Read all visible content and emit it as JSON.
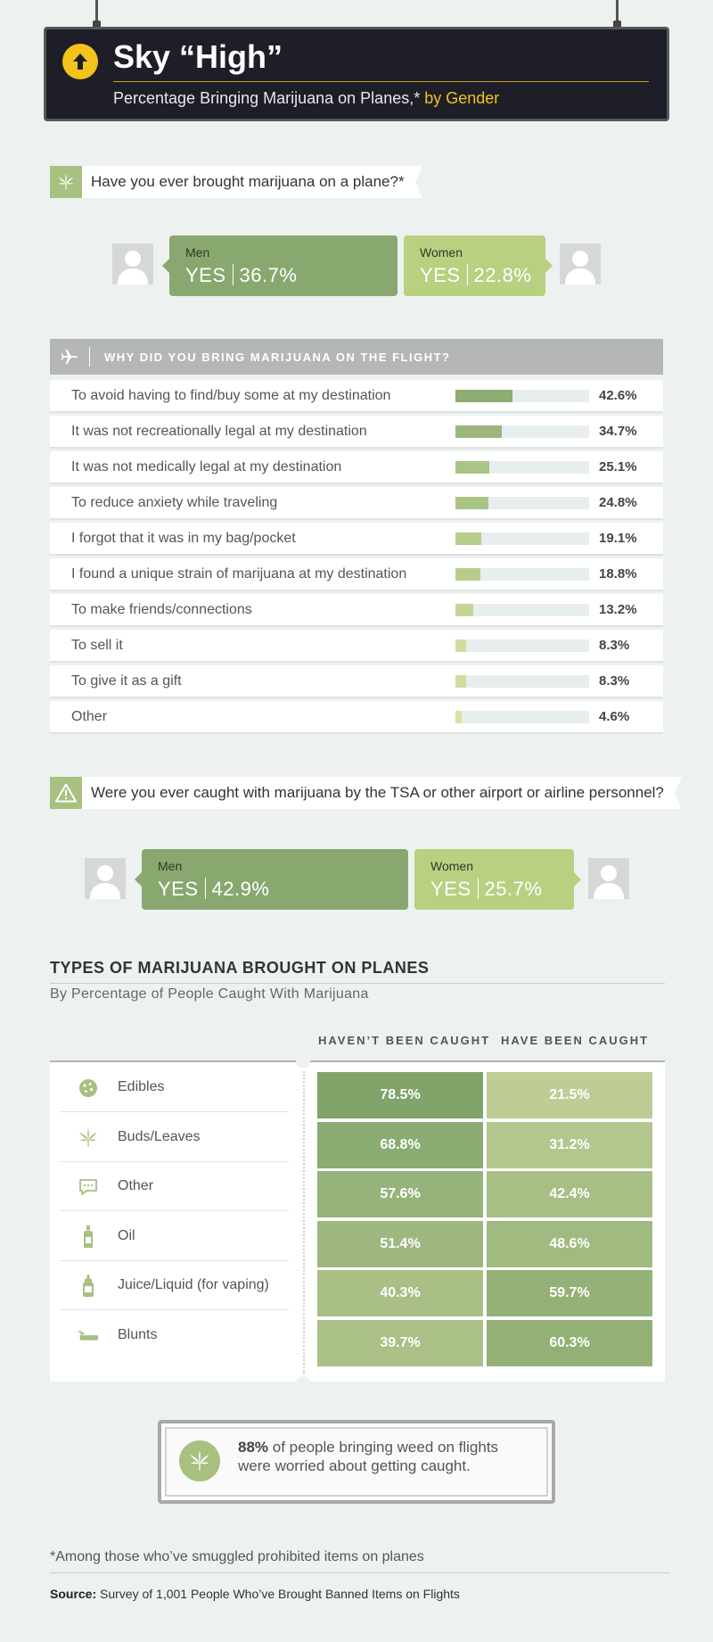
{
  "header": {
    "title": "Sky “High”",
    "subtitle": "Percentage Bringing Marijuana on Planes,*",
    "subtitle_highlight": "by Gender"
  },
  "q1": {
    "question": "Have you ever brought marijuana on a plane?*",
    "men": {
      "label": "Men",
      "answer": "YES",
      "value": "36.7%"
    },
    "women": {
      "label": "Women",
      "answer": "YES",
      "value": "22.8%"
    }
  },
  "reasons": {
    "header": "WHY DID YOU BRING MARIJUANA ON THE FLIGHT?",
    "rows": [
      {
        "label": "To avoid having to find/buy some at my destination",
        "value": "42.6%",
        "pct": 42.6
      },
      {
        "label": "It was not recreationally legal at my destination",
        "value": "34.7%",
        "pct": 34.7
      },
      {
        "label": "It was not medically legal at my destination",
        "value": "25.1%",
        "pct": 25.1
      },
      {
        "label": "To reduce anxiety while traveling",
        "value": "24.8%",
        "pct": 24.8
      },
      {
        "label": "I forgot that it was in my bag/pocket",
        "value": "19.1%",
        "pct": 19.1
      },
      {
        "label": "I found a unique strain of marijuana at my destination",
        "value": "18.8%",
        "pct": 18.8
      },
      {
        "label": "To make friends/connections",
        "value": "13.2%",
        "pct": 13.2
      },
      {
        "label": "To sell it",
        "value": "8.3%",
        "pct": 8.3
      },
      {
        "label": "To give it as a gift",
        "value": "8.3%",
        "pct": 8.3
      },
      {
        "label": "Other",
        "value": "4.6%",
        "pct": 4.6
      }
    ]
  },
  "q2": {
    "question": "Were you ever caught with marijuana by the TSA or other airport or airline personnel?",
    "men": {
      "label": "Men",
      "answer": "YES",
      "value": "42.9%"
    },
    "women": {
      "label": "Women",
      "answer": "YES",
      "value": "25.7%"
    }
  },
  "types": {
    "title": "TYPES OF MARIJUANA BROUGHT ON PLANES",
    "subtitle": "By Percentage of People Caught With Marijuana",
    "col_not_caught": "HAVEN’T BEEN CAUGHT",
    "col_caught": "HAVE BEEN CAUGHT",
    "rows": [
      {
        "name": "Edibles",
        "icon": "cookie-icon",
        "not_caught": "78.5%",
        "caught": "21.5%",
        "nc": 78.5,
        "c": 21.5
      },
      {
        "name": "Buds/Leaves",
        "icon": "leaf-icon",
        "not_caught": "68.8%",
        "caught": "31.2%",
        "nc": 68.8,
        "c": 31.2
      },
      {
        "name": "Other",
        "icon": "chat-bubble-icon",
        "not_caught": "57.6%",
        "caught": "42.4%",
        "nc": 57.6,
        "c": 42.4
      },
      {
        "name": "Oil",
        "icon": "oil-bottle-icon",
        "not_caught": "51.4%",
        "caught": "48.6%",
        "nc": 51.4,
        "c": 48.6
      },
      {
        "name": "Juice/Liquid (for vaping)",
        "icon": "vape-bottle-icon",
        "not_caught": "40.3%",
        "caught": "59.7%",
        "nc": 40.3,
        "c": 59.7
      },
      {
        "name": "Blunts",
        "icon": "blunt-icon",
        "not_caught": "39.7%",
        "caught": "60.3%",
        "nc": 39.7,
        "c": 60.3
      }
    ]
  },
  "callout": {
    "stat": "88%",
    "line1": " of people bringing weed on flights",
    "line2": "were worried about getting caught."
  },
  "footnote": "*Among those who’ve smuggled prohibited items on planes",
  "source": {
    "label": "Source:",
    "text": " Survey of 1,001 People Who’ve Brought Banned Items on Flights"
  },
  "colors": {
    "men": "#88a870",
    "women": "#b8d080",
    "accent": "#f2c31b",
    "sign_bg": "#1e1e28"
  }
}
